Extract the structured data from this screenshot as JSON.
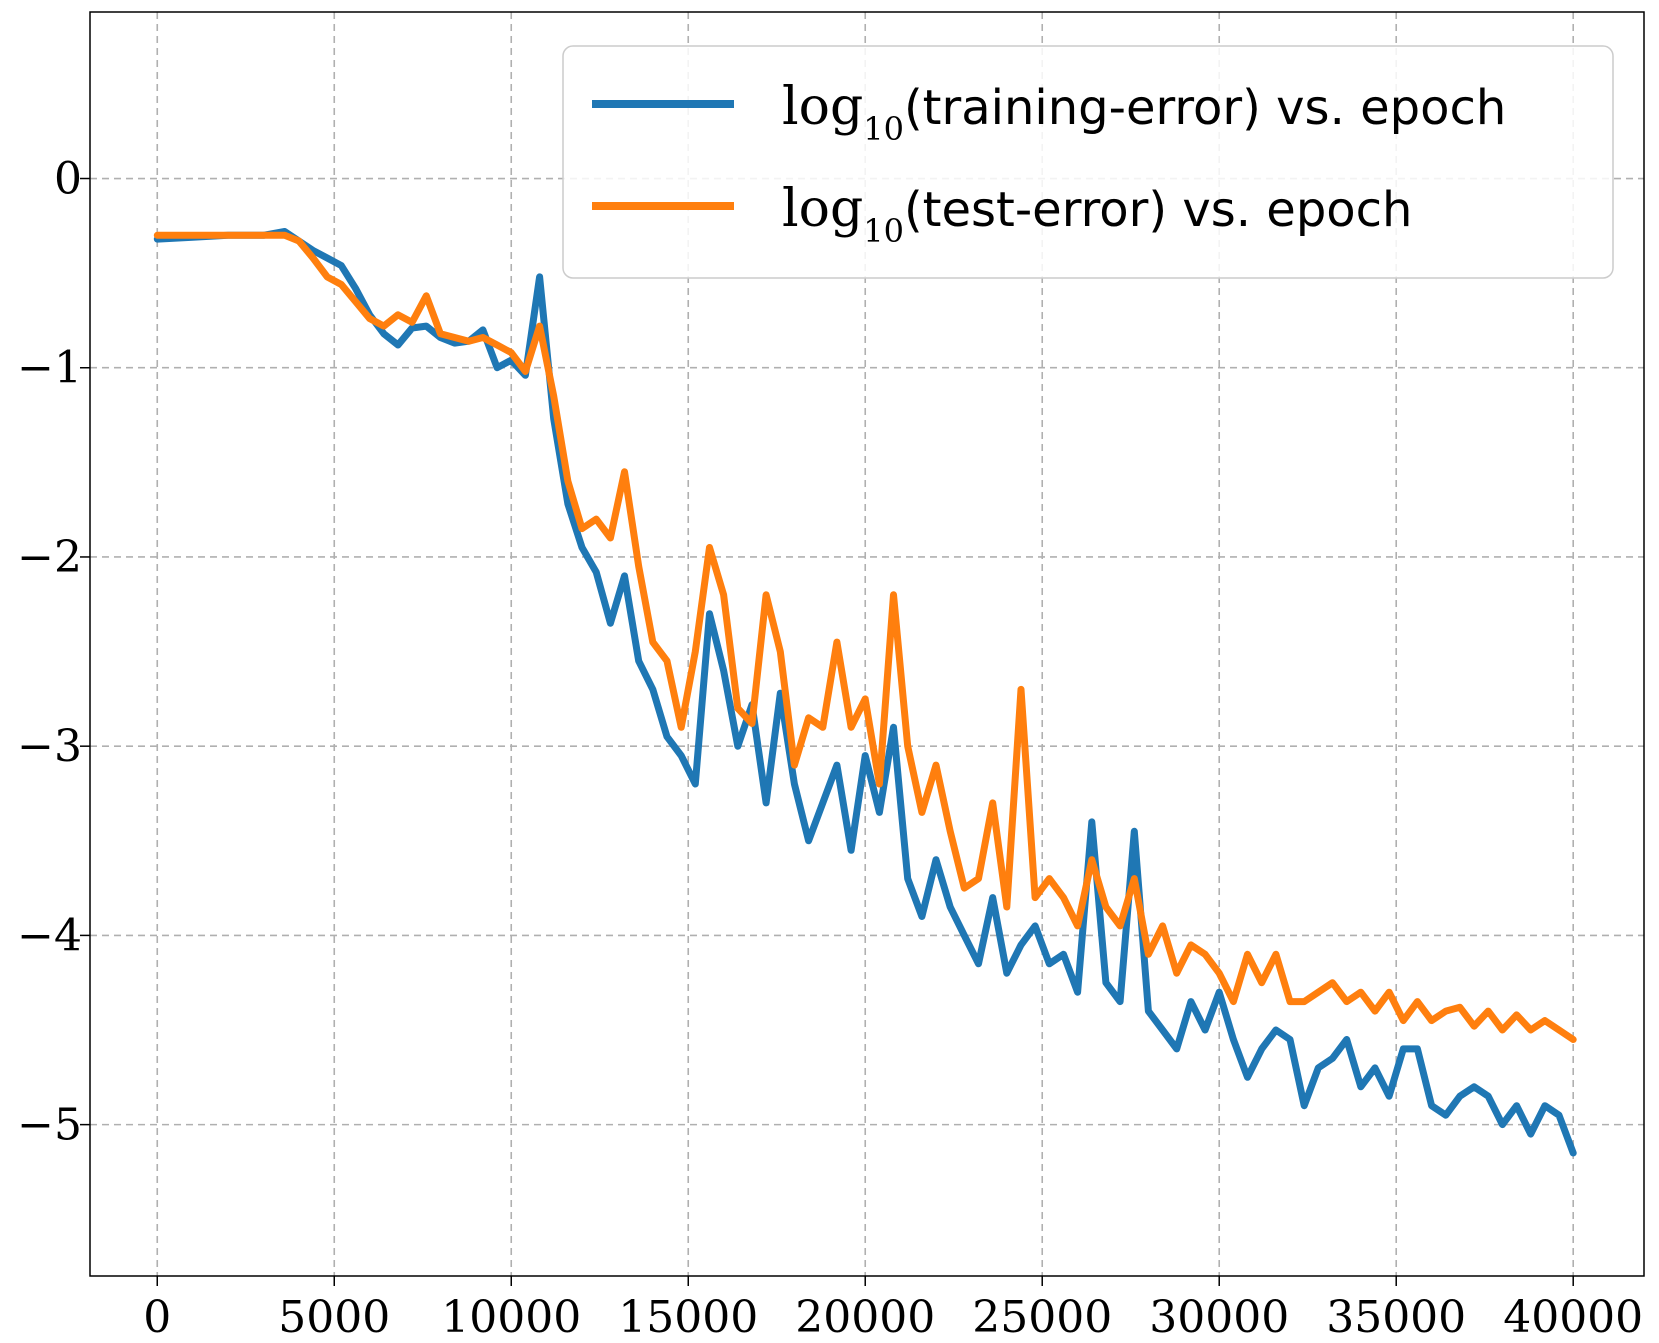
{
  "chart_data": {
    "type": "line",
    "title": "",
    "xlabel": "",
    "ylabel": "",
    "xlim": [
      -1900,
      42000
    ],
    "ylim": [
      -5.8,
      0.88
    ],
    "xticks": [
      0,
      5000,
      10000,
      15000,
      20000,
      25000,
      30000,
      35000,
      40000
    ],
    "yticks": [
      0,
      -1,
      -2,
      -3,
      -4,
      -5
    ],
    "xtick_labels": [
      "0",
      "5000",
      "10000",
      "15000",
      "20000",
      "25000",
      "30000",
      "35000",
      "40000"
    ],
    "ytick_labels": [
      "0",
      "−1",
      "−2",
      "−3",
      "−4",
      "−5"
    ],
    "grid": true,
    "legend_position": "top-right",
    "series": [
      {
        "name": "log10(training-error) vs. epoch",
        "legend": {
          "fn": "log",
          "sub": "10",
          "arg": "(training-error)",
          "rest": " vs. epoch"
        },
        "color": "#1f77b4",
        "x": [
          0,
          1000,
          2000,
          3000,
          3600,
          4000,
          4400,
          4800,
          5200,
          5600,
          6000,
          6400,
          6800,
          7200,
          7600,
          8000,
          8400,
          8800,
          9200,
          9600,
          10000,
          10400,
          10800,
          11200,
          11600,
          12000,
          12400,
          12800,
          13200,
          13600,
          14000,
          14400,
          14800,
          15200,
          15600,
          16000,
          16400,
          16800,
          17200,
          17600,
          18000,
          18400,
          18800,
          19200,
          19600,
          20000,
          20400,
          20800,
          21200,
          21600,
          22000,
          22400,
          22800,
          23200,
          23600,
          24000,
          24400,
          24800,
          25200,
          25600,
          26000,
          26400,
          26800,
          27200,
          27600,
          28000,
          28400,
          28800,
          29200,
          29600,
          30000,
          30400,
          30800,
          31200,
          31600,
          32000,
          32400,
          32800,
          33200,
          33600,
          34000,
          34400,
          34800,
          35200,
          35600,
          36000,
          36400,
          36800,
          37200,
          37600,
          38000,
          38400,
          38800,
          39200,
          39600,
          40000
        ],
        "values": [
          -0.32,
          -0.31,
          -0.3,
          -0.3,
          -0.28,
          -0.33,
          -0.38,
          -0.42,
          -0.46,
          -0.58,
          -0.72,
          -0.82,
          -0.88,
          -0.79,
          -0.78,
          -0.84,
          -0.87,
          -0.86,
          -0.8,
          -1.0,
          -0.96,
          -1.04,
          -0.52,
          -1.27,
          -1.72,
          -1.95,
          -2.08,
          -2.35,
          -2.1,
          -2.55,
          -2.7,
          -2.95,
          -3.05,
          -3.2,
          -2.3,
          -2.6,
          -3.0,
          -2.78,
          -3.3,
          -2.72,
          -3.2,
          -3.5,
          -3.3,
          -3.1,
          -3.55,
          -3.05,
          -3.35,
          -2.9,
          -3.7,
          -3.9,
          -3.6,
          -3.85,
          -4.0,
          -4.15,
          -3.8,
          -4.2,
          -4.05,
          -3.95,
          -4.15,
          -4.1,
          -4.3,
          -3.4,
          -4.25,
          -4.35,
          -3.45,
          -4.4,
          -4.5,
          -4.6,
          -4.35,
          -4.5,
          -4.3,
          -4.55,
          -4.75,
          -4.6,
          -4.5,
          -4.55,
          -4.9,
          -4.7,
          -4.65,
          -4.55,
          -4.8,
          -4.7,
          -4.85,
          -4.6,
          -4.6,
          -4.9,
          -4.95,
          -4.85,
          -4.8,
          -4.85,
          -5.0,
          -4.9,
          -5.05,
          -4.9,
          -4.95,
          -5.15
        ]
      },
      {
        "name": "log10(test-error) vs. epoch",
        "legend": {
          "fn": "log",
          "sub": "10",
          "arg": "(test-error)",
          "rest": " vs. epoch"
        },
        "color": "#ff7f0e",
        "x": [
          0,
          1000,
          2000,
          3000,
          3600,
          4000,
          4400,
          4800,
          5200,
          5600,
          6000,
          6400,
          6800,
          7200,
          7600,
          8000,
          8400,
          8800,
          9200,
          9600,
          10000,
          10400,
          10800,
          11200,
          11600,
          12000,
          12400,
          12800,
          13200,
          13600,
          14000,
          14400,
          14800,
          15200,
          15600,
          16000,
          16400,
          16800,
          17200,
          17600,
          18000,
          18400,
          18800,
          19200,
          19600,
          20000,
          20400,
          20800,
          21200,
          21600,
          22000,
          22400,
          22800,
          23200,
          23600,
          24000,
          24400,
          24800,
          25200,
          25600,
          26000,
          26400,
          26800,
          27200,
          27600,
          28000,
          28400,
          28800,
          29200,
          29600,
          30000,
          30400,
          30800,
          31200,
          31600,
          32000,
          32400,
          32800,
          33200,
          33600,
          34000,
          34400,
          34800,
          35200,
          35600,
          36000,
          36400,
          36800,
          37200,
          37600,
          38000,
          38400,
          38800,
          39200,
          39600,
          40000
        ],
        "values": [
          -0.3,
          -0.3,
          -0.3,
          -0.3,
          -0.3,
          -0.33,
          -0.42,
          -0.52,
          -0.56,
          -0.65,
          -0.74,
          -0.78,
          -0.72,
          -0.76,
          -0.62,
          -0.82,
          -0.84,
          -0.86,
          -0.84,
          -0.88,
          -0.92,
          -1.02,
          -0.78,
          -1.15,
          -1.6,
          -1.85,
          -1.8,
          -1.9,
          -1.55,
          -2.05,
          -2.45,
          -2.55,
          -2.9,
          -2.5,
          -1.95,
          -2.2,
          -2.8,
          -2.88,
          -2.2,
          -2.5,
          -3.1,
          -2.85,
          -2.9,
          -2.45,
          -2.9,
          -2.75,
          -3.2,
          -2.2,
          -3.0,
          -3.35,
          -3.1,
          -3.45,
          -3.75,
          -3.7,
          -3.3,
          -3.85,
          -2.7,
          -3.8,
          -3.7,
          -3.8,
          -3.95,
          -3.6,
          -3.85,
          -3.95,
          -3.7,
          -4.1,
          -3.95,
          -4.2,
          -4.05,
          -4.1,
          -4.2,
          -4.35,
          -4.1,
          -4.25,
          -4.1,
          -4.35,
          -4.35,
          -4.3,
          -4.25,
          -4.35,
          -4.3,
          -4.4,
          -4.3,
          -4.45,
          -4.35,
          -4.45,
          -4.4,
          -4.38,
          -4.48,
          -4.4,
          -4.5,
          -4.42,
          -4.5,
          -4.45,
          -4.5,
          -4.55
        ]
      }
    ]
  }
}
